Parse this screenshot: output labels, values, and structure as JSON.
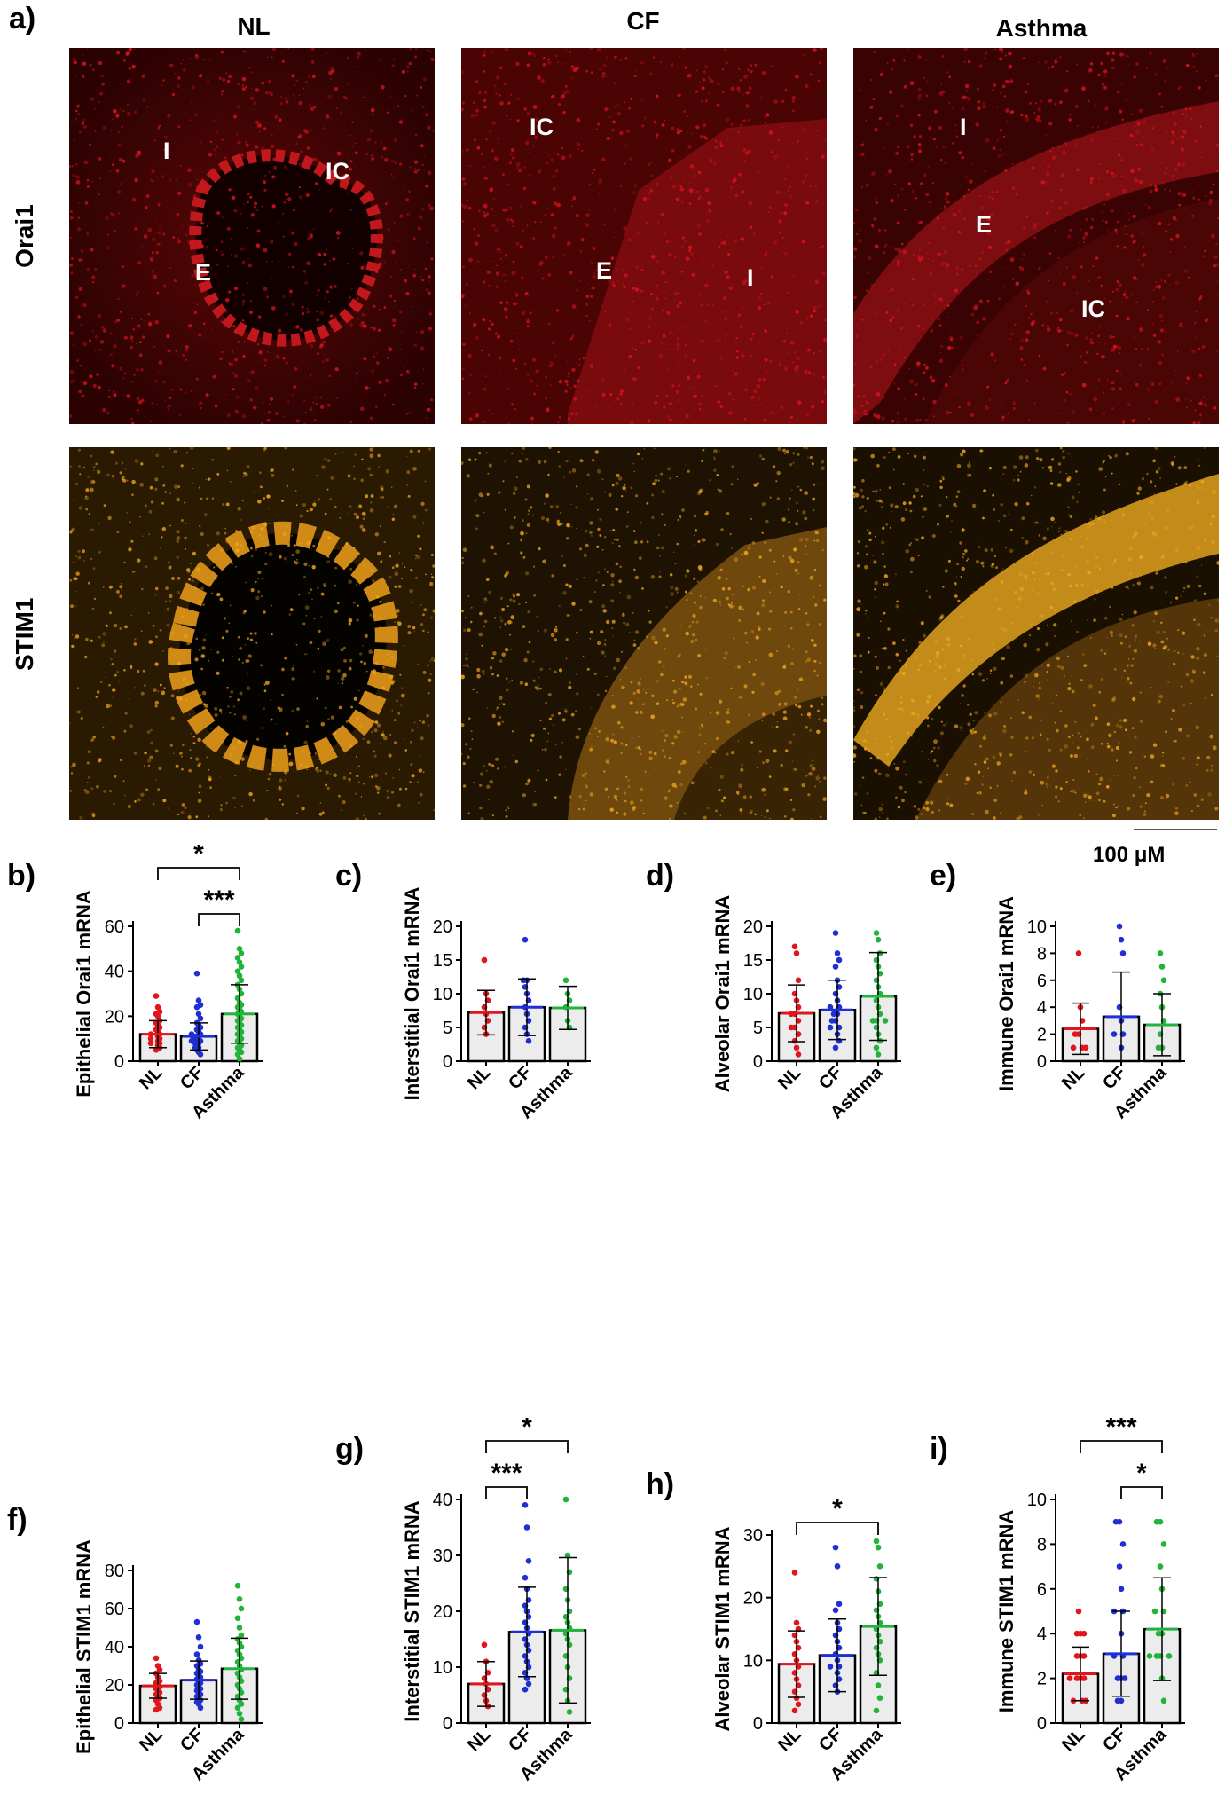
{
  "panel_a": {
    "letter": "a)",
    "columns": [
      "NL",
      "CF",
      "Asthma"
    ],
    "rows": [
      "Orai1",
      "STIM1"
    ],
    "region_labels": {
      "nl": [
        "I",
        "IC",
        "E"
      ],
      "cf": [
        "IC",
        "E",
        "I"
      ],
      "asthma": [
        "I",
        "E",
        "IC"
      ]
    },
    "colors": {
      "orai1": "#e0141e",
      "stim1": "#f2a81d"
    },
    "scale_bar": "100 μM"
  },
  "chart_data": [
    {
      "id": "b",
      "letter": "b)",
      "type": "bar",
      "ylabel": "Epithelial Orai1 mRNA",
      "categories": [
        "NL",
        "CF",
        "Asthma"
      ],
      "ylim": [
        0,
        60
      ],
      "yticks": [
        "0",
        "20",
        "40",
        "60"
      ],
      "means": [
        12,
        11,
        21
      ],
      "sd": [
        6,
        6,
        13
      ],
      "points": [
        [
          29,
          24,
          22,
          21,
          20,
          18,
          17,
          16,
          15,
          14,
          13,
          12,
          12,
          11,
          10,
          10,
          9,
          8,
          8,
          7,
          6,
          5
        ],
        [
          39,
          27,
          25,
          24,
          21,
          19,
          17,
          16,
          15,
          14,
          13,
          12,
          12,
          11,
          11,
          10,
          10,
          9,
          9,
          8,
          8,
          7,
          6,
          6,
          5,
          4,
          3
        ],
        [
          58,
          50,
          48,
          46,
          44,
          42,
          40,
          38,
          36,
          34,
          32,
          30,
          28,
          26,
          25,
          24,
          23,
          22,
          21,
          20,
          19,
          18,
          17,
          16,
          15,
          14,
          13,
          12,
          11,
          10,
          9,
          8,
          7,
          6,
          5,
          4,
          3,
          1
        ]
      ],
      "brackets": [
        {
          "from": 0,
          "to": 2,
          "label": "*",
          "level": 2
        },
        {
          "from": 1,
          "to": 2,
          "label": "***",
          "level": 1
        }
      ]
    },
    {
      "id": "c",
      "letter": "c)",
      "type": "bar",
      "ylabel": "Interstitial Orai1 mRNA",
      "categories": [
        "NL",
        "CF",
        "Asthma"
      ],
      "ylim": [
        0,
        20
      ],
      "yticks": [
        "0",
        "5",
        "10",
        "15",
        "20"
      ],
      "means": [
        7.2,
        8,
        7.9
      ],
      "sd": [
        3.3,
        4.2,
        3.2
      ],
      "points": [
        [
          15,
          10,
          9,
          8,
          7,
          6,
          5,
          4
        ],
        [
          18,
          12,
          12,
          11,
          10,
          9,
          8,
          7,
          6,
          5,
          4,
          3
        ],
        [
          12,
          10,
          9,
          8,
          6,
          5
        ]
      ],
      "brackets": []
    },
    {
      "id": "d",
      "letter": "d)",
      "type": "bar",
      "ylabel": "Alveolar Orai1 mRNA",
      "categories": [
        "NL",
        "CF",
        "Asthma"
      ],
      "ylim": [
        0,
        20
      ],
      "yticks": [
        "0",
        "5",
        "10",
        "15",
        "20"
      ],
      "means": [
        7.1,
        7.6,
        9.6
      ],
      "sd": [
        4.2,
        4.4,
        6.5
      ],
      "points": [
        [
          17,
          16,
          12,
          10,
          9,
          8,
          7,
          7,
          6,
          5,
          5,
          4,
          3,
          2,
          1
        ],
        [
          19,
          16,
          15,
          14,
          12,
          11,
          10,
          9,
          8,
          8,
          7,
          7,
          6,
          6,
          5,
          5,
          4,
          3,
          2
        ],
        [
          19,
          18,
          16,
          15,
          14,
          13,
          12,
          11,
          10,
          9,
          8,
          7,
          6,
          6,
          6,
          5,
          4,
          3,
          2,
          1
        ]
      ],
      "brackets": []
    },
    {
      "id": "e",
      "letter": "e)",
      "type": "bar",
      "ylabel": "Immune Orai1 mRNA",
      "categories": [
        "NL",
        "CF",
        "Asthma"
      ],
      "ylim": [
        0,
        10
      ],
      "yticks": [
        "0",
        "2",
        "4",
        "6",
        "8",
        "10"
      ],
      "means": [
        2.4,
        3.3,
        2.7
      ],
      "sd": [
        1.9,
        3.3,
        2.3
      ],
      "points": [
        [
          8,
          4,
          3,
          2,
          2,
          1,
          1,
          1
        ],
        [
          10,
          9,
          8,
          4,
          3,
          2,
          2,
          1
        ],
        [
          8,
          7,
          6,
          5,
          4,
          3,
          2,
          1,
          1
        ]
      ],
      "brackets": []
    },
    {
      "id": "f",
      "letter": "f)",
      "type": "bar",
      "ylabel": "Epithelial STIM1 mRNA",
      "categories": [
        "NL",
        "CF",
        "Asthma"
      ],
      "ylim": [
        0,
        80
      ],
      "yticks": [
        "0",
        "20",
        "40",
        "60",
        "80"
      ],
      "means": [
        19.5,
        22.5,
        28.5
      ],
      "sd": [
        6.5,
        10,
        16
      ],
      "points": [
        [
          34,
          30,
          28,
          26,
          24,
          22,
          21,
          20,
          19,
          18,
          17,
          16,
          15,
          14,
          13,
          12,
          10,
          8,
          7
        ],
        [
          53,
          45,
          40,
          36,
          33,
          31,
          30,
          28,
          27,
          26,
          25,
          24,
          23,
          22,
          21,
          20,
          19,
          18,
          17,
          16,
          15,
          14,
          13,
          12,
          11,
          10,
          8
        ],
        [
          72,
          65,
          60,
          55,
          50,
          46,
          44,
          42,
          40,
          38,
          36,
          34,
          32,
          30,
          28,
          26,
          24,
          22,
          20,
          18,
          16,
          14,
          12,
          10,
          8,
          5,
          2
        ]
      ],
      "brackets": []
    },
    {
      "id": "g",
      "letter": "g)",
      "type": "bar",
      "ylabel": "Interstitial STIM1 mRNA",
      "categories": [
        "NL",
        "CF",
        "Asthma"
      ],
      "ylim": [
        0,
        40
      ],
      "yticks": [
        "0",
        "10",
        "20",
        "30",
        "40"
      ],
      "means": [
        7,
        16.3,
        16.6
      ],
      "sd": [
        4,
        8,
        13
      ],
      "points": [
        [
          14,
          11,
          9,
          8,
          7,
          6,
          5,
          4,
          3
        ],
        [
          39,
          35,
          29,
          26,
          24,
          22,
          21,
          20,
          19,
          18,
          17,
          16,
          15,
          14,
          13,
          12,
          11,
          10,
          9,
          8,
          7,
          6
        ],
        [
          40,
          30,
          27,
          24,
          22,
          20,
          19,
          18,
          17,
          16,
          15,
          14,
          12,
          10,
          8,
          6,
          4,
          2
        ]
      ],
      "brackets": [
        {
          "from": 0,
          "to": 2,
          "label": "*",
          "level": 2
        },
        {
          "from": 0,
          "to": 1,
          "label": "***",
          "level": 1
        }
      ]
    },
    {
      "id": "h",
      "letter": "h)",
      "type": "bar",
      "ylabel": "Alveolar STIM1 mRNA",
      "categories": [
        "NL",
        "CF",
        "Asthma"
      ],
      "ylim": [
        0,
        30
      ],
      "yticks": [
        "0",
        "10",
        "20",
        "30"
      ],
      "means": [
        9.4,
        10.8,
        15.4
      ],
      "sd": [
        5.3,
        5.8,
        7.8
      ],
      "points": [
        [
          24,
          16,
          15,
          14,
          13,
          12,
          11,
          10,
          9,
          8,
          7,
          6,
          5,
          4,
          3,
          2
        ],
        [
          28,
          25,
          19,
          18,
          16,
          15,
          14,
          13,
          12,
          11,
          10,
          9,
          9,
          8,
          7,
          6,
          5
        ],
        [
          29,
          28,
          25,
          23,
          21,
          19,
          18,
          17,
          16,
          15,
          14,
          13,
          12,
          11,
          10,
          8,
          6,
          4,
          2
        ]
      ],
      "brackets": [
        {
          "from": 0,
          "to": 2,
          "label": "*",
          "level": 1
        }
      ]
    },
    {
      "id": "i",
      "letter": "i)",
      "type": "bar",
      "ylabel": "Immune STIM1 mRNA",
      "categories": [
        "NL",
        "CF",
        "Asthma"
      ],
      "ylim": [
        0,
        10
      ],
      "yticks": [
        "0",
        "2",
        "4",
        "6",
        "8",
        "10"
      ],
      "means": [
        2.2,
        3.1,
        4.2
      ],
      "sd": [
        1.2,
        1.9,
        2.3
      ],
      "points": [
        [
          5,
          4,
          4,
          4,
          3,
          3,
          3,
          2,
          2,
          2,
          2,
          1,
          1,
          1
        ],
        [
          9,
          9,
          8,
          7,
          6,
          5,
          5,
          4,
          3,
          3,
          2,
          2,
          2,
          1,
          1
        ],
        [
          9,
          9,
          8,
          7,
          6,
          5,
          5,
          4,
          4,
          3,
          3,
          3,
          3,
          2,
          1
        ]
      ],
      "brackets": [
        {
          "from": 0,
          "to": 2,
          "label": "***",
          "level": 2
        },
        {
          "from": 1,
          "to": 2,
          "label": "*",
          "level": 1
        }
      ]
    }
  ],
  "series_colors": [
    "#e0161c",
    "#1f2fd4",
    "#22b33a"
  ]
}
